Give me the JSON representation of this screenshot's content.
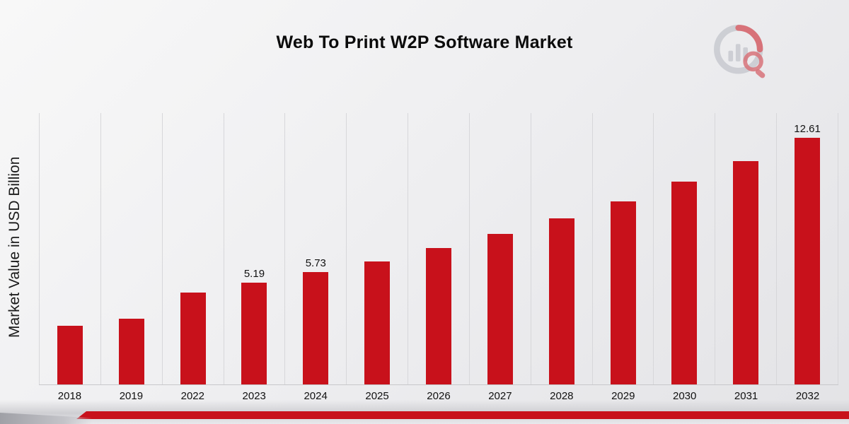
{
  "page": {
    "title": "Web To Print W2P Software Market"
  },
  "watermark": {
    "name": "market-research-future-logo",
    "ring_color": "#b5b8c0",
    "accent_color": "#c8111b"
  },
  "footer": {
    "ribbon_color": "#c8111b"
  },
  "chart_data": {
    "type": "bar",
    "title": "Web To Print W2P Software Market",
    "xlabel": "",
    "ylabel": "Market Value in USD Billion",
    "bar_color": "#c8111b",
    "grid": "vertical",
    "legend": "none",
    "ylim": [
      0,
      13.9
    ],
    "categories": [
      "2018",
      "2019",
      "2022",
      "2023",
      "2024",
      "2025",
      "2026",
      "2027",
      "2028",
      "2029",
      "2030",
      "2031",
      "2032"
    ],
    "values": [
      3.0,
      3.35,
      4.7,
      5.19,
      5.73,
      6.3,
      6.95,
      7.7,
      8.5,
      9.35,
      10.35,
      11.4,
      12.61
    ],
    "point_labels": [
      "",
      "",
      "",
      "5.19",
      "5.73",
      "",
      "",
      "",
      "",
      "",
      "",
      "",
      "12.61"
    ]
  }
}
